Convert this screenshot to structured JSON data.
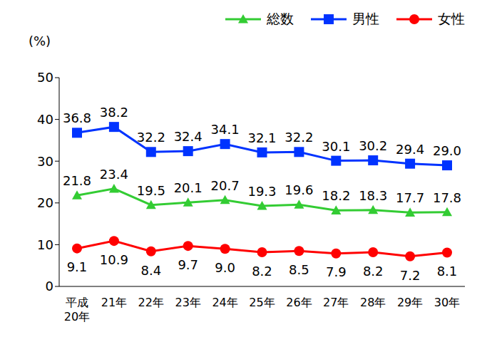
{
  "chart_data": {
    "type": "line",
    "y_label": "(%)",
    "categories": [
      "平成\n20年",
      "21年",
      "22年",
      "23年",
      "24年",
      "25年",
      "26年",
      "27年",
      "28年",
      "29年",
      "30年"
    ],
    "series": [
      {
        "name": "総数",
        "color": "#33cc33",
        "marker": "triangle",
        "values": [
          21.8,
          23.4,
          19.5,
          20.1,
          20.7,
          19.3,
          19.6,
          18.2,
          18.3,
          17.7,
          17.8
        ],
        "value_labels": [
          "21.8",
          "23.4",
          "19.5",
          "20.1",
          "20.7",
          "19.3",
          "19.6",
          "18.2",
          "18.3",
          "17.7",
          "17.8"
        ]
      },
      {
        "name": "男性",
        "color": "#0033ff",
        "marker": "square",
        "values": [
          36.8,
          38.2,
          32.2,
          32.4,
          34.1,
          32.1,
          32.2,
          30.1,
          30.2,
          29.4,
          29.0
        ],
        "value_labels": [
          "36.8",
          "38.2",
          "32.2",
          "32.4",
          "34.1",
          "32.1",
          "32.2",
          "30.1",
          "30.2",
          "29.4",
          "29.0"
        ]
      },
      {
        "name": "女性",
        "color": "#ff0000",
        "marker": "circle",
        "values": [
          9.1,
          10.9,
          8.4,
          9.7,
          9.0,
          8.2,
          8.5,
          7.9,
          8.2,
          7.2,
          8.1
        ],
        "value_labels": [
          "9.1",
          "10.9",
          "8.4",
          "9.7",
          "9.0",
          "8.2",
          "8.5",
          "7.9",
          "8.2",
          "7.2",
          "8.1"
        ]
      }
    ],
    "ylim": [
      0,
      50
    ],
    "yticks": [
      0,
      10,
      20,
      30,
      40,
      50
    ],
    "grid": false,
    "legend": "upper right",
    "data_labels": true
  }
}
